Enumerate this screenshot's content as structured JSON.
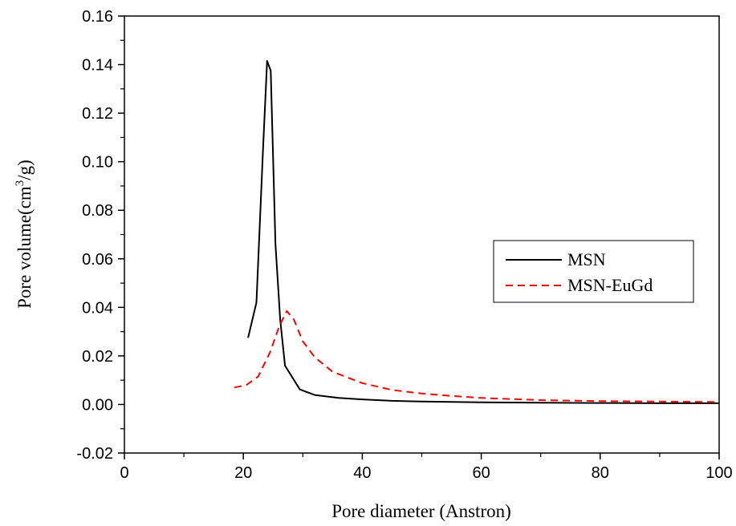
{
  "chart_data": {
    "type": "line",
    "title": "",
    "xlabel": "Pore diameter (Anstron)",
    "ylabel_main": "Pore volume(cm",
    "ylabel_sup": "3",
    "ylabel_tail": "/g)",
    "xlim": [
      0,
      100
    ],
    "ylim": [
      -0.02,
      0.16
    ],
    "x_ticks": [
      0,
      20,
      40,
      60,
      80,
      100
    ],
    "y_ticks": [
      -0.02,
      0.0,
      0.02,
      0.04,
      0.06,
      0.08,
      0.1,
      0.12,
      0.14,
      0.16
    ],
    "x_tick_labels": [
      "0",
      "20",
      "40",
      "60",
      "80",
      "100"
    ],
    "y_tick_labels": [
      "-0.02",
      "0.00",
      "0.02",
      "0.04",
      "0.06",
      "0.08",
      "0.10",
      "0.12",
      "0.14",
      "0.16"
    ],
    "grid": false,
    "legend_position": "right",
    "series": [
      {
        "name": "MSN",
        "color": "#000000",
        "style": "solid",
        "x": [
          20.8,
          22.2,
          23.3,
          24.0,
          24.6,
          25.4,
          26.2,
          27.0,
          29.5,
          32,
          36,
          40,
          45,
          50,
          60,
          70,
          80,
          90,
          100
        ],
        "y": [
          0.0275,
          0.042,
          0.105,
          0.1415,
          0.1375,
          0.066,
          0.035,
          0.016,
          0.0062,
          0.0039,
          0.0027,
          0.0021,
          0.0015,
          0.0012,
          0.0009,
          0.0007,
          0.0006,
          0.0005,
          0.0005
        ]
      },
      {
        "name": "MSN-EuGd",
        "color": "#ff0000",
        "style": "dashed",
        "x": [
          18.5,
          20.5,
          22.5,
          24.5,
          26,
          27.3,
          28.5,
          30,
          32,
          35,
          40,
          45,
          50,
          55,
          60,
          70,
          80,
          90,
          100
        ],
        "y": [
          0.007,
          0.008,
          0.0115,
          0.0215,
          0.032,
          0.0385,
          0.035,
          0.026,
          0.0195,
          0.0135,
          0.0088,
          0.006,
          0.0045,
          0.0035,
          0.0027,
          0.0018,
          0.0014,
          0.0012,
          0.001
        ]
      }
    ]
  }
}
